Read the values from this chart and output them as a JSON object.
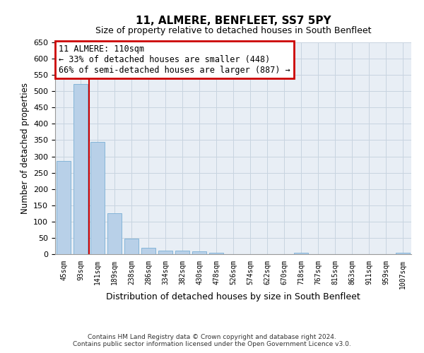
{
  "title": "11, ALMERE, BENFLEET, SS7 5PY",
  "subtitle": "Size of property relative to detached houses in South Benfleet",
  "xlabel": "Distribution of detached houses by size in South Benfleet",
  "ylabel": "Number of detached properties",
  "footer_line1": "Contains HM Land Registry data © Crown copyright and database right 2024.",
  "footer_line2": "Contains public sector information licensed under the Open Government Licence v3.0.",
  "bar_labels": [
    "45sqm",
    "93sqm",
    "141sqm",
    "189sqm",
    "238sqm",
    "286sqm",
    "334sqm",
    "382sqm",
    "430sqm",
    "478sqm",
    "526sqm",
    "574sqm",
    "622sqm",
    "670sqm",
    "718sqm",
    "767sqm",
    "815sqm",
    "863sqm",
    "911sqm",
    "959sqm",
    "1007sqm"
  ],
  "bar_values": [
    285,
    523,
    345,
    125,
    48,
    20,
    10,
    10,
    9,
    5,
    0,
    0,
    0,
    0,
    4,
    0,
    0,
    0,
    0,
    0,
    4
  ],
  "bar_color": "#b8d0e8",
  "bar_edgecolor": "#7aafd4",
  "plot_bg_color": "#e8eef5",
  "ylim": [
    0,
    650
  ],
  "yticks": [
    0,
    50,
    100,
    150,
    200,
    250,
    300,
    350,
    400,
    450,
    500,
    550,
    600,
    650
  ],
  "annotation_title": "11 ALMERE: 110sqm",
  "annotation_line1": "← 33% of detached houses are smaller (448)",
  "annotation_line2": "66% of semi-detached houses are larger (887) →",
  "annotation_box_facecolor": "#ffffff",
  "annotation_box_edgecolor": "#cc0000",
  "vline_color": "#cc0000",
  "background_color": "#ffffff",
  "grid_color": "#c8d4e0",
  "title_fontsize": 11,
  "subtitle_fontsize": 9
}
